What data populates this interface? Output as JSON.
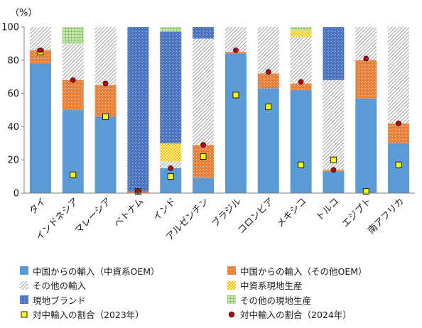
{
  "chart_data": {
    "type": "bar",
    "stacked": true,
    "ylabel": "（%）",
    "ylim": [
      0,
      100
    ],
    "yticks": [
      0,
      20,
      40,
      60,
      80,
      100
    ],
    "grid": false,
    "legend_position": "bottom",
    "categories": [
      "タイ",
      "インドネシア",
      "マレーシア",
      "ベトナム",
      "インド",
      "アルゼンチン",
      "ブラジル",
      "コロンビア",
      "メキシコ",
      "トルコ",
      "エジプト",
      "南アフリカ"
    ],
    "series": [
      {
        "name": "中国からの輸入（中資系OEM）",
        "color": "#5b9bd5",
        "pattern": "solid",
        "values": [
          78,
          50,
          46,
          0,
          15,
          9,
          84,
          63,
          62,
          13,
          57,
          30
        ]
      },
      {
        "name": "中国からの輸入（その他OEM）",
        "color": "#ed7d31",
        "pattern": "dots",
        "values": [
          8,
          18,
          19,
          1,
          0,
          20,
          1,
          9,
          4,
          1,
          23,
          12
        ]
      },
      {
        "name": "その他の輸入",
        "color": "#a5a5a5",
        "pattern": "diagonal",
        "values": [
          14,
          22,
          35,
          0,
          4,
          64,
          15,
          28,
          28,
          54,
          20,
          58
        ]
      },
      {
        "name": "中資系現地生産",
        "color": "#ffc000",
        "pattern": "checker",
        "values": [
          0,
          0,
          0,
          0,
          11,
          0,
          0,
          0,
          4,
          0,
          0,
          0
        ]
      },
      {
        "name": "現地ブランド",
        "color": "#4472c4",
        "pattern": "dots",
        "values": [
          0,
          0,
          0,
          99,
          67,
          7,
          0,
          0,
          0,
          32,
          0,
          0
        ]
      },
      {
        "name": "その他の現地生産",
        "color": "#70ad47",
        "pattern": "grid",
        "values": [
          0,
          10,
          0,
          0,
          3,
          0,
          0,
          0,
          2,
          0,
          0,
          0
        ]
      }
    ],
    "markers": [
      {
        "name": "対中輸入の割合（2023年）",
        "shape": "square",
        "color": "#ffff00",
        "values": [
          85,
          11,
          46,
          1,
          10,
          22,
          59,
          52,
          17,
          20,
          1,
          17
        ]
      },
      {
        "name": "対中輸入の割合（2024年）",
        "shape": "circle",
        "color": "#c00000",
        "values": [
          86,
          68,
          66,
          1,
          15,
          29,
          86,
          73,
          67,
          14,
          81,
          42
        ]
      }
    ]
  }
}
